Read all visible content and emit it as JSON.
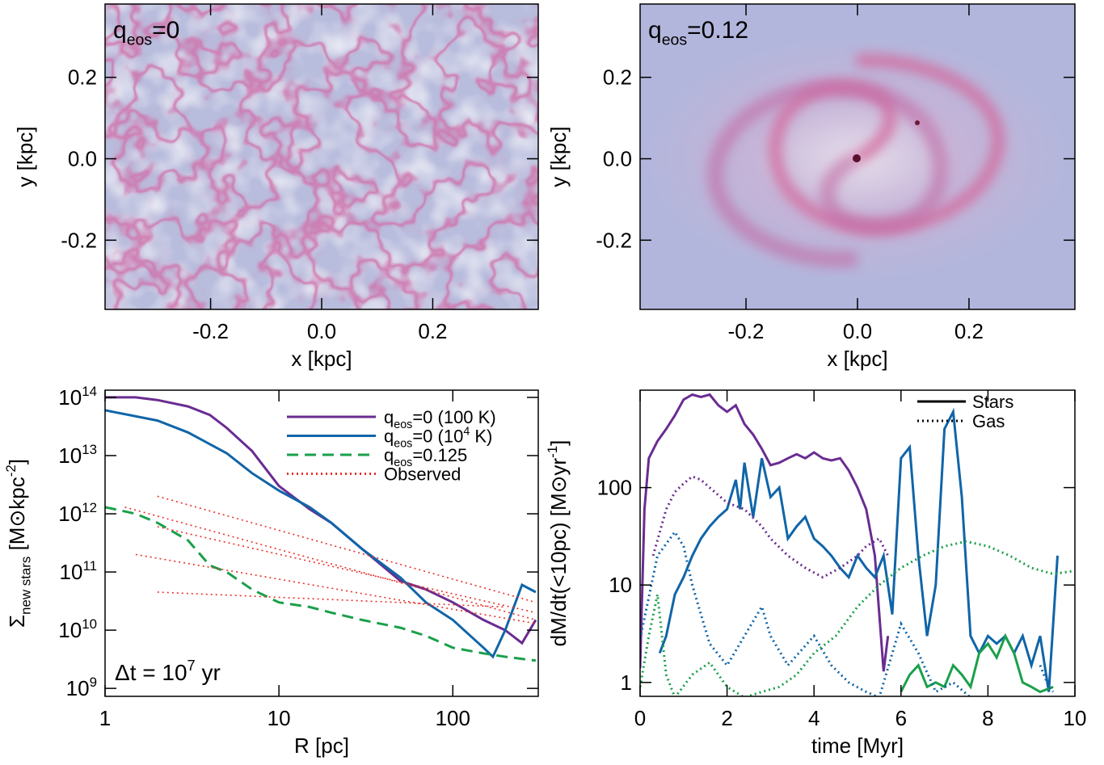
{
  "chart_data": [
    {
      "type": "image",
      "label": [
        {
          "text": "q"
        },
        {
          "text": "eos",
          "shift": "sub"
        },
        {
          "text": "=0"
        }
      ],
      "xlabel": "x  [kpc]",
      "ylabel": "y  [kpc]",
      "xlim": [
        -0.39,
        0.39
      ],
      "ylim": [
        -0.37,
        0.38
      ],
      "xticks": [
        -0.2,
        {
          "value": 0,
          "label": "0.0"
        },
        0.2
      ],
      "yticks": [
        -0.2,
        {
          "value": 0,
          "label": "0.0"
        },
        0.2
      ]
    },
    {
      "type": "image",
      "label": [
        {
          "text": "q"
        },
        {
          "text": "eos",
          "shift": "sub"
        },
        {
          "text": "=0.12"
        }
      ],
      "xlabel": "x  [kpc]",
      "ylabel": "y  [kpc]",
      "xlim": [
        -0.39,
        0.39
      ],
      "ylim": [
        -0.37,
        0.38
      ],
      "xticks": [
        -0.2,
        {
          "value": 0,
          "label": "0.0"
        },
        0.2
      ],
      "yticks": [
        -0.2,
        {
          "value": 0,
          "label": "0.0"
        },
        0.2
      ]
    },
    {
      "type": "line",
      "xlog": true,
      "ylog": true,
      "xlabel": "R  [pc]",
      "ylabel": [
        {
          "text": "Σ"
        },
        {
          "text": "new stars",
          "shift": "sub"
        },
        {
          "text": "  [M⊙kpc"
        },
        {
          "text": "-2",
          "shift": "sup"
        },
        {
          "text": "]"
        }
      ],
      "annotation": [
        {
          "text": "Δt = 10"
        },
        {
          "text": "7",
          "shift": "sup"
        },
        {
          "text": " yr"
        }
      ],
      "legend_position": "upper right",
      "xlim": [
        1,
        310
      ],
      "ylim": [
        730000000.0,
        133000000000000.0
      ],
      "xticks": [
        1,
        10,
        100
      ],
      "yticks": [
        {
          "value": 1000000000.0,
          "label": "10",
          "exponent": "9"
        },
        {
          "value": 10000000000.0,
          "label": "10",
          "exponent": "10"
        },
        {
          "value": 100000000000.0,
          "label": "10",
          "exponent": "11"
        },
        {
          "value": 1000000000000.0,
          "label": "10",
          "exponent": "12"
        },
        {
          "value": 10000000000000.0,
          "label": "10",
          "exponent": "13"
        },
        {
          "value": 100000000000000.0,
          "label": "10",
          "exponent": "14"
        }
      ],
      "series": [
        {
          "name": [
            {
              "text": "q"
            },
            {
              "text": "eos",
              "shift": "sub"
            },
            {
              "text": "=0 (100 K)"
            }
          ],
          "color": "#6a2c91",
          "dash": "solid",
          "x": [
            1,
            1.5,
            2,
            3,
            4,
            5,
            7,
            10,
            15,
            20,
            30,
            50,
            70,
            100,
            150,
            200,
            250,
            300
          ],
          "values": [
            100000000000000.0,
            100000000000000.0,
            90000000000000.0,
            70000000000000.0,
            50000000000000.0,
            30000000000000.0,
            12000000000000.0,
            3000000000000.0,
            1200000000000.0,
            700000000000.0,
            250000000000.0,
            70000000000.0,
            50000000000.0,
            30000000000.0,
            15000000000.0,
            10000000000.0,
            6000000000.0,
            15000000000.0
          ]
        },
        {
          "name": [
            {
              "text": "q"
            },
            {
              "text": "eos",
              "shift": "sub"
            },
            {
              "text": "=0 (10"
            },
            {
              "text": "4",
              "shift": "sup"
            },
            {
              "text": " K)"
            }
          ],
          "color": "#1065a8",
          "dash": "solid",
          "x": [
            1,
            2,
            3,
            5,
            7,
            10,
            15,
            20,
            30,
            50,
            70,
            100,
            150,
            170,
            200,
            250,
            300
          ],
          "values": [
            60000000000000.0,
            40000000000000.0,
            25000000000000.0,
            11000000000000.0,
            5000000000000.0,
            2500000000000.0,
            1300000000000.0,
            700000000000.0,
            250000000000.0,
            80000000000.0,
            30000000000.0,
            15000000000.0,
            5000000000.0,
            3500000000.0,
            10000000000.0,
            60000000000.0,
            45000000000.0
          ]
        },
        {
          "name": [
            {
              "text": "q"
            },
            {
              "text": "eos",
              "shift": "sub"
            },
            {
              "text": "=0.125"
            }
          ],
          "color": "#1aa04a",
          "dash": "dashed",
          "x": [
            1,
            1.5,
            2,
            3,
            4,
            5,
            7,
            10,
            15,
            20,
            30,
            50,
            70,
            100,
            150,
            200,
            300
          ],
          "values": [
            1300000000000.0,
            1000000000000.0,
            700000000000.0,
            350000000000.0,
            130000000000.0,
            100000000000.0,
            50000000000.0,
            30000000000.0,
            25000000000.0,
            20000000000.0,
            15000000000.0,
            11000000000.0,
            8000000000.0,
            5000000000.0,
            4000000000.0,
            3500000000.0,
            3000000000.0
          ]
        },
        {
          "name": [
            {
              "text": "Observed"
            }
          ],
          "color": "#e8302a",
          "dash": "dotted",
          "lines": [
            {
              "x": [
                2,
                300
              ],
              "values": [
                2000000000000.0,
                30000000000.0
              ]
            },
            {
              "x": [
                1.3,
                300
              ],
              "values": [
                1300000000000.0,
                15000000000.0
              ]
            },
            {
              "x": [
                2,
                300
              ],
              "values": [
                600000000000.0,
                20000000000.0
              ]
            },
            {
              "x": [
                1.5,
                300
              ],
              "values": [
                200000000000.0,
                13000000000.0
              ]
            },
            {
              "x": [
                2,
                200
              ],
              "values": [
                45000000000.0,
                25000000000.0
              ]
            }
          ]
        }
      ]
    },
    {
      "type": "line",
      "ylog": true,
      "xlabel": "time  [Myr]",
      "ylabel": [
        {
          "text": "dM/dt(<10pc)  [M⊙yr"
        },
        {
          "text": "-1",
          "shift": "sup"
        },
        {
          "text": "]"
        }
      ],
      "legend_position": "upper right",
      "legend": [
        {
          "label": "Stars",
          "dash": "solid"
        },
        {
          "label": "Gas",
          "dash": "dotted"
        }
      ],
      "xlim": [
        0,
        10
      ],
      "ylim": [
        0.72,
        1000
      ],
      "xticks": [
        0,
        2,
        4,
        6,
        8,
        10
      ],
      "yticks": [
        1,
        10,
        100
      ],
      "series": [
        {
          "color": "#6a2c91",
          "dash": "solid",
          "x": [
            0,
            0.1,
            0.2,
            0.4,
            0.6,
            0.8,
            1,
            1.2,
            1.4,
            1.6,
            1.8,
            2,
            2.2,
            2.4,
            2.6,
            2.8,
            3,
            3.2,
            3.4,
            3.6,
            3.8,
            4,
            4.2,
            4.4,
            4.6,
            4.8,
            5,
            5.2,
            5.4,
            5.6,
            5.7
          ],
          "values": [
            1.4,
            60,
            200,
            300,
            400,
            550,
            800,
            900,
            850,
            900,
            700,
            600,
            700,
            450,
            350,
            250,
            170,
            180,
            200,
            220,
            200,
            230,
            200,
            190,
            200,
            150,
            100,
            60,
            20,
            1.3,
            3
          ]
        },
        {
          "color": "#1065a8",
          "dash": "solid",
          "x": [
            0.45,
            0.6,
            0.8,
            1,
            1.2,
            1.4,
            1.6,
            1.8,
            2,
            2.2,
            2.3,
            2.4,
            2.6,
            2.8,
            3,
            3.2,
            3.4,
            3.6,
            3.8,
            4,
            4.2,
            4.4,
            4.6,
            4.8,
            5,
            5.2,
            5.4,
            5.6,
            5.8,
            6,
            6.2,
            6.4,
            6.6,
            6.8,
            7,
            7.2,
            7.4,
            7.6,
            7.8,
            8,
            8.2,
            8.4,
            8.6,
            8.8,
            9,
            9.2,
            9.4,
            9.6
          ],
          "values": [
            2,
            3,
            8,
            12,
            20,
            30,
            40,
            50,
            60,
            120,
            60,
            180,
            50,
            200,
            80,
            100,
            30,
            40,
            50,
            30,
            25,
            20,
            15,
            12,
            20,
            15,
            12,
            20,
            5,
            200,
            260,
            20,
            3,
            10,
            400,
            600,
            80,
            3,
            2,
            3,
            2.5,
            3,
            2,
            3,
            1.5,
            3,
            0.8,
            20
          ]
        },
        {
          "color": "#1aa04a",
          "dash": "solid",
          "x": [
            6,
            6.2,
            6.4,
            6.6,
            6.8,
            7,
            7.2,
            7.4,
            7.6,
            7.8,
            8,
            8.2,
            8.4,
            8.6,
            8.8,
            9,
            9.2,
            9.5
          ],
          "values": [
            0.8,
            1.2,
            1.5,
            0.9,
            1,
            0.9,
            1.5,
            1.2,
            0.9,
            2,
            2.5,
            1.8,
            3,
            2,
            1,
            0.9,
            0.8,
            0.9
          ]
        },
        {
          "color": "#6a2c91",
          "dash": "dotted",
          "x": [
            0.3,
            0.6,
            0.8,
            1,
            1.2,
            1.4,
            1.6,
            2,
            2.4,
            2.8,
            3,
            3.4,
            3.8,
            4.2,
            4.6,
            5,
            5.2,
            5.5,
            5.7
          ],
          "values": [
            20,
            60,
            90,
            110,
            130,
            120,
            100,
            70,
            60,
            40,
            30,
            20,
            15,
            12,
            15,
            20,
            25,
            30,
            20
          ]
        },
        {
          "color": "#1065a8",
          "dash": "dotted",
          "x": [
            0,
            0.4,
            0.8,
            1,
            1.2,
            1.4,
            1.6,
            2,
            2.4,
            2.8,
            3,
            3.4,
            4,
            4.4,
            4.8,
            5.2,
            5.5,
            6,
            6.4,
            6.8,
            7.2,
            7.6,
            8.4,
            9.2,
            9.4,
            9.5
          ],
          "values": [
            2.8,
            20,
            35,
            25,
            10,
            5,
            2.5,
            1.5,
            3,
            6,
            3,
            1.5,
            3,
            1.5,
            1,
            0.8,
            0.7,
            4,
            2,
            0.8,
            1,
            0.7,
            null,
            1.5,
            0.9,
            0.8
          ]
        },
        {
          "color": "#1aa04a",
          "dash": "dotted",
          "x": [
            0,
            0.2,
            0.4,
            0.6,
            0.8,
            1.2,
            1.6,
            2,
            2.4,
            2.8,
            3.2,
            3.6,
            4,
            4.5,
            5,
            5.5,
            6,
            6.5,
            7,
            7.5,
            8,
            8.5,
            9,
            9.5,
            10
          ],
          "values": [
            0.9,
            3,
            8,
            1.2,
            0.7,
            1.2,
            1.6,
            0.9,
            0.7,
            0.8,
            0.9,
            1.2,
            2,
            3,
            6,
            10,
            15,
            20,
            25,
            28,
            25,
            20,
            15,
            13,
            14
          ]
        }
      ]
    }
  ]
}
